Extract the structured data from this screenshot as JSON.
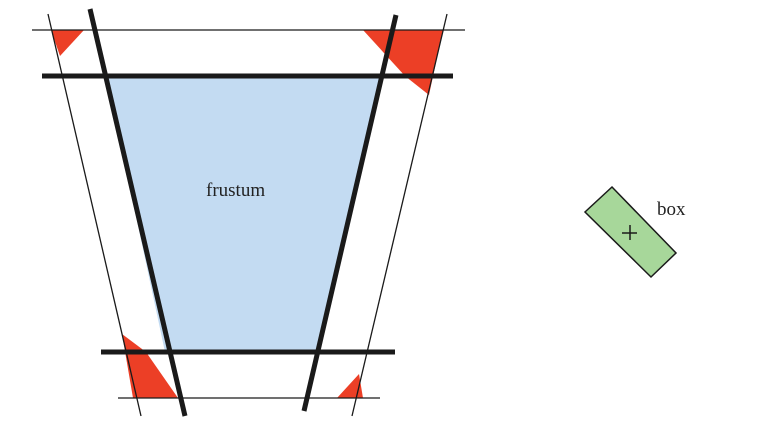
{
  "labels": {
    "frustum": "frustum",
    "box": "box"
  },
  "colors": {
    "frustum_fill": "#c3dbf2",
    "box_fill": "#a7d79a",
    "corner_fill": "#ec3f26",
    "stroke": "#1a1a1a"
  }
}
